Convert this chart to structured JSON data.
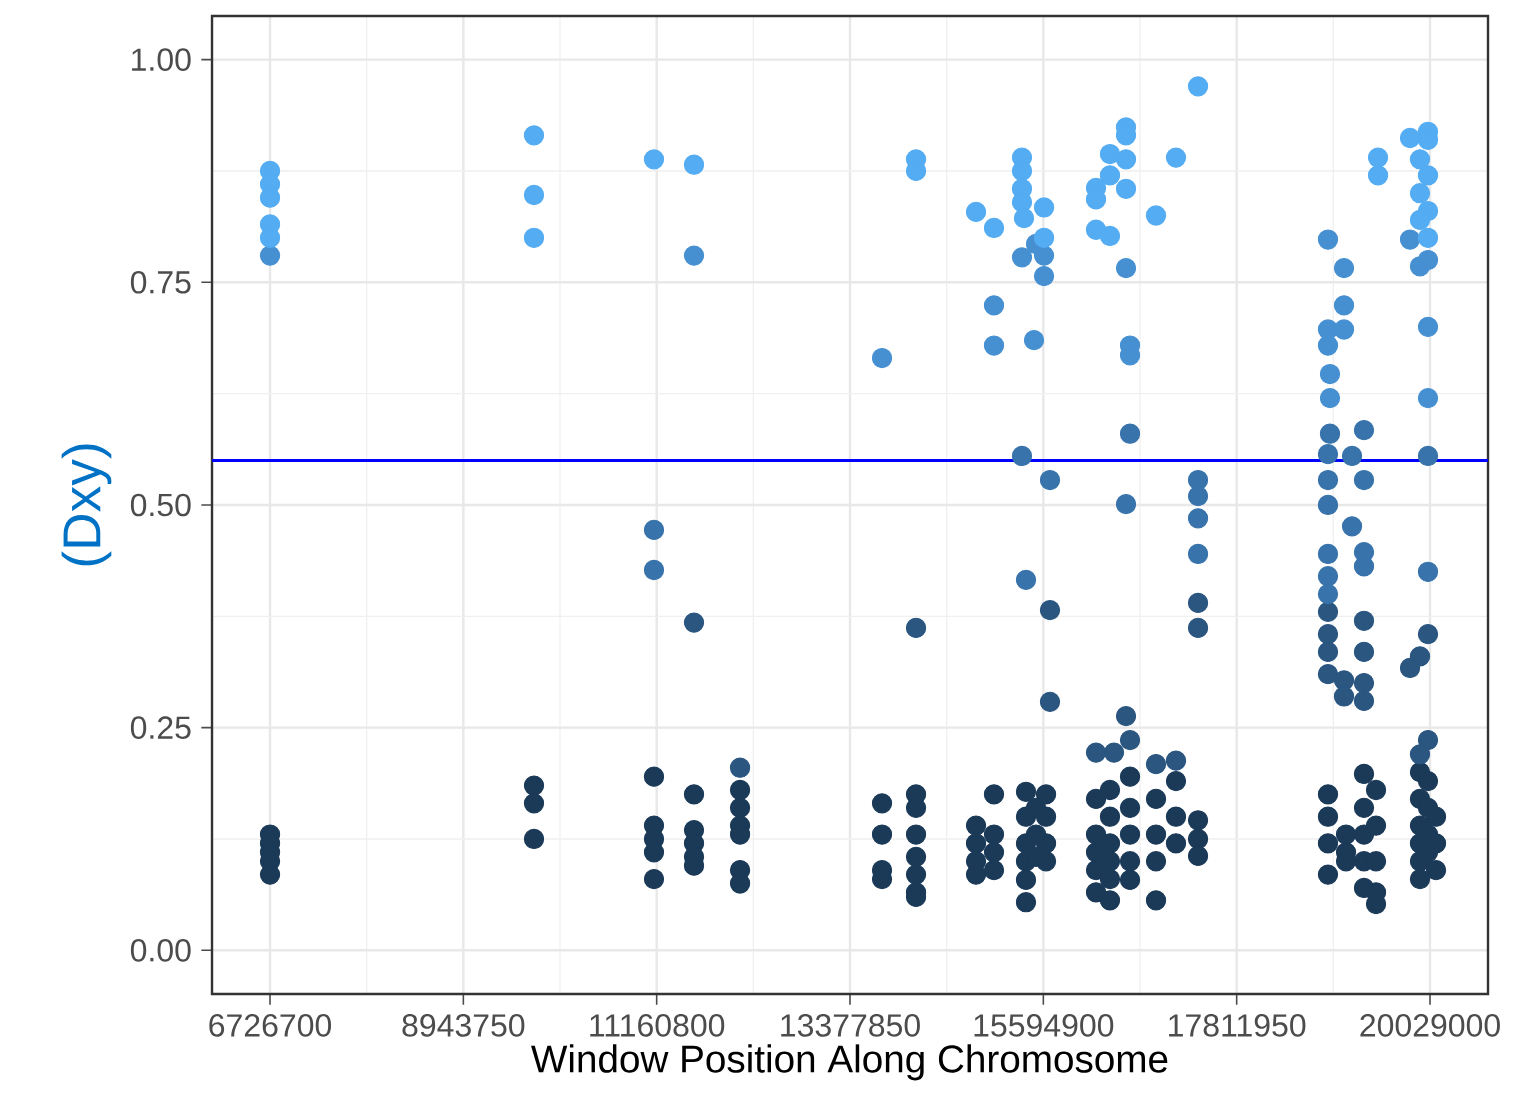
{
  "chart_data": {
    "type": "scatter",
    "xlabel": "Window Position Along Chromosome",
    "ylabel": "(Dxy)",
    "grid": true,
    "xlim": [
      6061600,
      20694100
    ],
    "ylim": [
      -0.049,
      1.049
    ],
    "xticks": [
      6726700,
      8943750,
      11160800,
      13377850,
      15594900,
      17811950,
      20029000
    ],
    "yticks": [
      {
        "value": 0,
        "label": "0.00"
      },
      {
        "value": 0.25,
        "label": "0.25"
      },
      {
        "value": 0.5,
        "label": "0.50"
      },
      {
        "value": 0.75,
        "label": "0.75"
      },
      {
        "value": 1,
        "label": "1.00"
      }
    ],
    "ref_lines": [
      {
        "axis": "y",
        "value": 0.55,
        "color": "#0000ff"
      }
    ],
    "series": [
      {
        "color": "#1b3a58",
        "x": [
          6727000,
          6727000,
          6727000,
          6727000,
          6727000,
          9754000,
          9754000,
          9754000,
          11130000,
          11130000,
          11130000,
          11130000,
          11130000,
          11589000,
          11589000,
          11589000,
          11589000,
          11589000,
          12117000,
          12117000,
          12117000,
          12117000,
          12117000,
          12117000,
          13745000,
          13745000,
          13745000,
          13745000,
          14135000,
          14135000,
          14135000,
          14135000,
          14135000,
          14135000,
          14135000,
          14823000,
          14823000,
          14823000,
          14823000,
          15029000,
          15029000,
          15029000,
          15029000,
          15396000,
          15396000,
          15396000,
          15396000,
          15396000,
          15396000,
          15626000,
          15626000,
          15626000,
          15626000,
          15511000,
          15511000,
          15511000,
          16199000,
          16199000,
          16199000,
          16199000,
          16199000,
          16359000,
          16359000,
          16359000,
          16359000,
          16359000,
          16359000,
          16589000,
          16589000,
          16589000,
          16589000,
          16589000,
          16887000,
          16887000,
          16887000,
          16887000,
          17116000,
          17116000,
          17116000,
          17369000,
          17369000,
          17369000,
          18859000,
          18859000,
          18859000,
          18859000,
          19066000,
          19066000,
          19066000,
          19272000,
          19272000,
          19272000,
          19272000,
          19272000,
          19410000,
          19410000,
          19410000,
          19410000,
          19410000,
          19914000,
          19914000,
          19914000,
          19914000,
          19914000,
          19914000,
          20006000,
          20006000,
          20006000,
          20006000,
          20098000,
          20098000,
          20098000
        ],
        "values": [
          0.13,
          0.12,
          0.11,
          0.1,
          0.085,
          0.185,
          0.165,
          0.125,
          0.195,
          0.14,
          0.125,
          0.11,
          0.08,
          0.175,
          0.135,
          0.12,
          0.105,
          0.095,
          0.18,
          0.16,
          0.14,
          0.13,
          0.09,
          0.075,
          0.165,
          0.13,
          0.09,
          0.08,
          0.175,
          0.16,
          0.13,
          0.105,
          0.085,
          0.065,
          0.06,
          0.14,
          0.12,
          0.1,
          0.085,
          0.175,
          0.13,
          0.11,
          0.09,
          0.178,
          0.15,
          0.12,
          0.1,
          0.079,
          0.054,
          0.175,
          0.15,
          0.12,
          0.1,
          0.16,
          0.13,
          0.105,
          0.17,
          0.13,
          0.11,
          0.09,
          0.065,
          0.18,
          0.15,
          0.12,
          0.1,
          0.08,
          0.056,
          0.195,
          0.16,
          0.13,
          0.1,
          0.079,
          0.17,
          0.13,
          0.1,
          0.056,
          0.19,
          0.15,
          0.12,
          0.146,
          0.125,
          0.106,
          0.175,
          0.15,
          0.12,
          0.085,
          0.13,
          0.11,
          0.1,
          0.198,
          0.16,
          0.13,
          0.1,
          0.07,
          0.18,
          0.14,
          0.1,
          0.065,
          0.052,
          0.2,
          0.17,
          0.14,
          0.12,
          0.1,
          0.08,
          0.19,
          0.16,
          0.13,
          0.11,
          0.15,
          0.12,
          0.09
        ]
      },
      {
        "color": "#2a5680",
        "x": [
          12117000,
          11589000,
          14135000,
          15671000,
          15671000,
          17369000,
          17369000,
          18859000,
          18859000,
          18859000,
          18859000,
          19043000,
          19043000,
          19272000,
          19272000,
          19272000,
          19272000,
          20006000,
          19914000,
          19800000,
          16543000,
          16589000,
          16199000,
          16405000,
          16887000,
          17116000,
          20006000,
          19914000
        ],
        "values": [
          0.205,
          0.368,
          0.362,
          0.382,
          0.279,
          0.39,
          0.362,
          0.38,
          0.355,
          0.335,
          0.31,
          0.303,
          0.285,
          0.37,
          0.335,
          0.3,
          0.28,
          0.355,
          0.33,
          0.317,
          0.263,
          0.236,
          0.222,
          0.222,
          0.209,
          0.213,
          0.236,
          0.22
        ]
      },
      {
        "color": "#3873ab",
        "x": [
          11130000,
          11130000,
          15350000,
          15671000,
          15396000,
          16589000,
          16543000,
          17369000,
          17369000,
          17369000,
          17369000,
          18882000,
          18859000,
          18859000,
          18859000,
          18859000,
          18859000,
          18859000,
          19272000,
          19272000,
          19272000,
          19272000,
          19135000,
          19135000,
          20006000,
          20006000
        ],
        "values": [
          0.472,
          0.427,
          0.555,
          0.528,
          0.416,
          0.58,
          0.501,
          0.528,
          0.51,
          0.485,
          0.445,
          0.58,
          0.557,
          0.528,
          0.5,
          0.445,
          0.42,
          0.4,
          0.584,
          0.528,
          0.447,
          0.431,
          0.555,
          0.476,
          0.555,
          0.425
        ]
      },
      {
        "color": "#4690d2",
        "x": [
          6727000,
          11589000,
          15029000,
          15029000,
          15350000,
          15511000,
          15603000,
          15603000,
          15488000,
          16543000,
          16589000,
          16589000,
          18859000,
          18859000,
          18859000,
          19043000,
          19043000,
          19043000,
          18882000,
          18882000,
          19914000,
          20006000,
          19800000,
          20006000,
          20006000,
          13745000
        ],
        "values": [
          0.78,
          0.78,
          0.724,
          0.679,
          0.778,
          0.793,
          0.78,
          0.757,
          0.685,
          0.766,
          0.679,
          0.668,
          0.798,
          0.697,
          0.679,
          0.766,
          0.724,
          0.697,
          0.647,
          0.62,
          0.768,
          0.775,
          0.798,
          0.7,
          0.62,
          0.665
        ]
      },
      {
        "color": "#54acf2",
        "x": [
          6727000,
          6727000,
          6727000,
          6727000,
          6727000,
          9754000,
          9754000,
          9754000,
          11130000,
          11589000,
          14135000,
          14135000,
          14823000,
          15029000,
          15350000,
          15350000,
          15350000,
          15350000,
          15373000,
          15603000,
          15603000,
          16359000,
          16359000,
          16543000,
          16543000,
          16543000,
          16543000,
          16199000,
          16199000,
          16199000,
          16359000,
          17116000,
          16887000,
          17369000,
          19800000,
          20006000,
          20006000,
          20006000,
          20006000,
          20006000,
          19914000,
          19914000,
          19914000,
          19433000,
          19433000
        ],
        "values": [
          0.875,
          0.86,
          0.845,
          0.815,
          0.8,
          0.915,
          0.848,
          0.8,
          0.888,
          0.882,
          0.888,
          0.875,
          0.829,
          0.811,
          0.89,
          0.875,
          0.855,
          0.84,
          0.822,
          0.834,
          0.8,
          0.894,
          0.87,
          0.924,
          0.915,
          0.888,
          0.855,
          0.856,
          0.843,
          0.809,
          0.802,
          0.89,
          0.825,
          0.97,
          0.912,
          0.919,
          0.91,
          0.87,
          0.83,
          0.8,
          0.888,
          0.85,
          0.82,
          0.89,
          0.87
        ]
      }
    ]
  }
}
